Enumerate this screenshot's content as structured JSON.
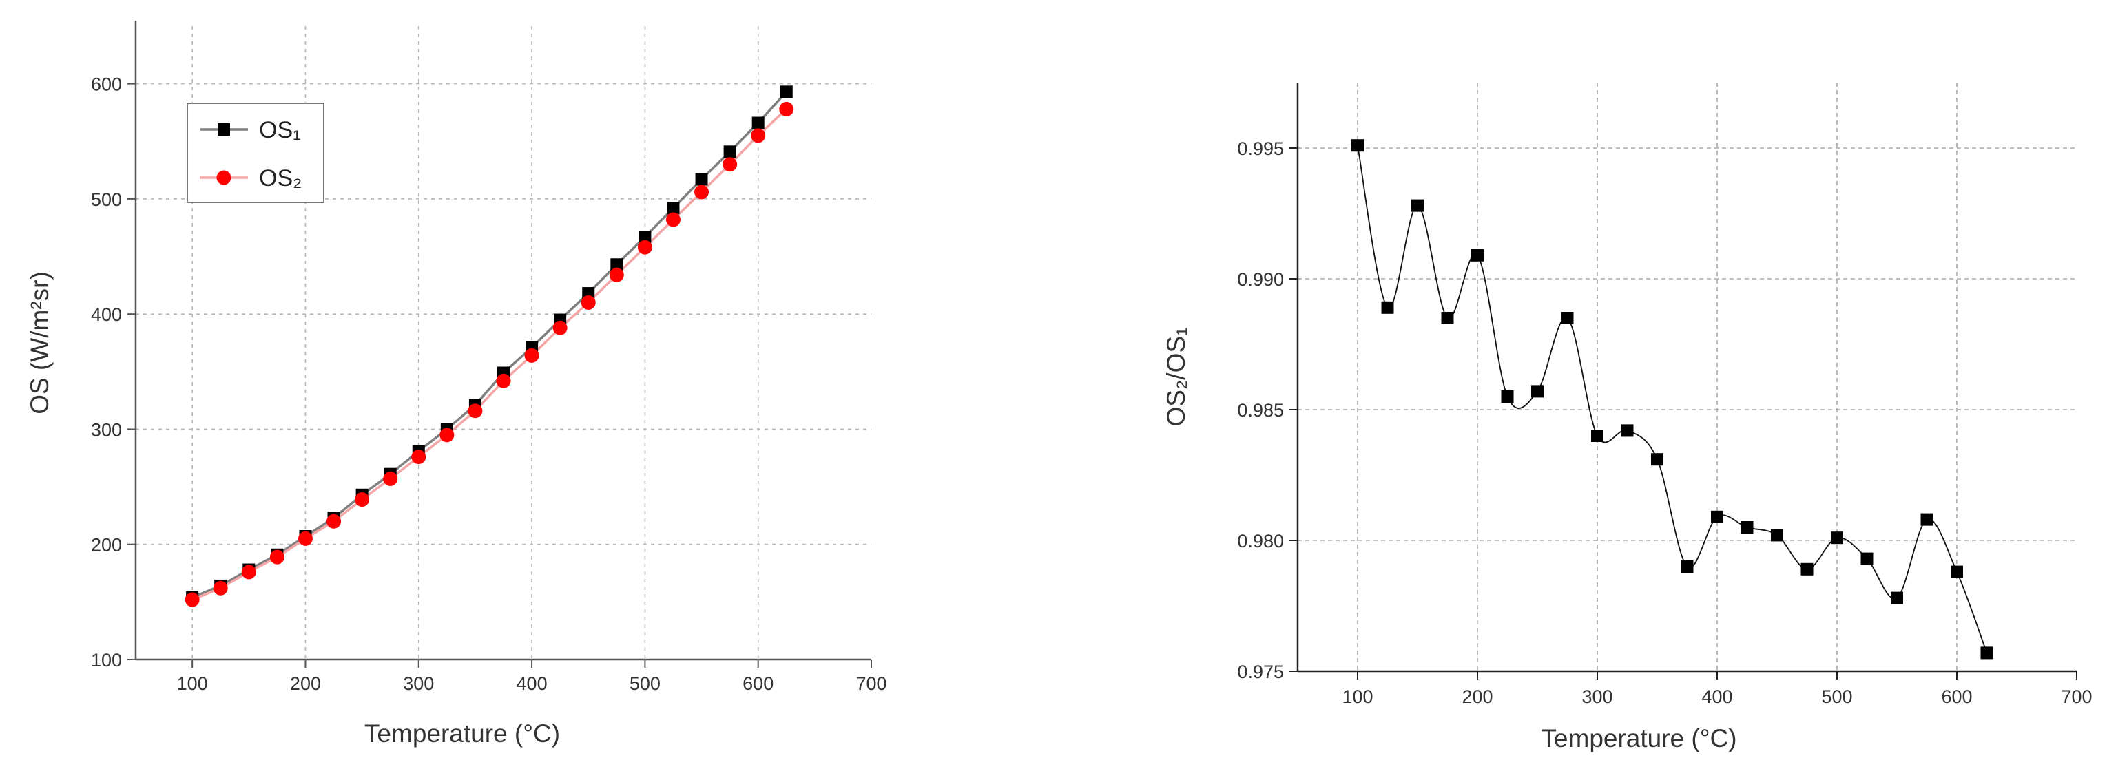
{
  "chart_data": [
    {
      "type": "line",
      "title": "",
      "xlabel": "Temperature (°C)",
      "ylabel": "OS (W/m²sr)",
      "xlim": [
        50,
        700
      ],
      "ylim": [
        100,
        650
      ],
      "xticks": [
        100,
        200,
        300,
        400,
        500,
        600,
        700
      ],
      "yticks": [
        100,
        200,
        300,
        400,
        500,
        600
      ],
      "grid": true,
      "legend": "top-left",
      "x": [
        100,
        125,
        150,
        175,
        200,
        225,
        250,
        275,
        300,
        325,
        350,
        375,
        400,
        425,
        450,
        475,
        500,
        525,
        550,
        575,
        600,
        625
      ],
      "series": [
        {
          "name": "OS₁",
          "color": "#000000",
          "line_color": "#7f7f7f",
          "marker": "square",
          "values": [
            154,
            164,
            178,
            191,
            207,
            223,
            243,
            261,
            281,
            300,
            321,
            349,
            371,
            395,
            418,
            443,
            467,
            492,
            517,
            541,
            566,
            593
          ]
        },
        {
          "name": "OS₂",
          "color": "#ff0000",
          "line_color": "#f4a6a6",
          "marker": "circle",
          "values": [
            152,
            162,
            176,
            189,
            205,
            220,
            239,
            257,
            276,
            295,
            316,
            342,
            364,
            388,
            410,
            434,
            458,
            482,
            506,
            530,
            555,
            578
          ]
        }
      ]
    },
    {
      "type": "scatter",
      "title": "",
      "xlabel": "Temperature (°C)",
      "ylabel": "OS₂/OS₁",
      "xlim": [
        50,
        700
      ],
      "ylim": [
        0.975,
        0.9975
      ],
      "xticks": [
        100,
        200,
        300,
        400,
        500,
        600,
        700
      ],
      "yticks": [
        0.975,
        0.98,
        0.985,
        0.99,
        0.995
      ],
      "ytick_labels": [
        "0.975",
        "0.980",
        "0.985",
        "0.990",
        "0.995"
      ],
      "grid": true,
      "series": [
        {
          "color": "#000000",
          "marker": "square",
          "smooth_line": true,
          "x": [
            100,
            125,
            150,
            175,
            200,
            225,
            250,
            275,
            300,
            325,
            350,
            375,
            400,
            425,
            450,
            475,
            500,
            525,
            550,
            575,
            600,
            625
          ],
          "values": [
            0.9951,
            0.9889,
            0.9928,
            0.9885,
            0.9909,
            0.9855,
            0.9857,
            0.9885,
            0.984,
            0.9842,
            0.9831,
            0.979,
            0.9809,
            0.9805,
            0.9802,
            0.9789,
            0.9801,
            0.9793,
            0.9778,
            0.9808,
            0.9788,
            0.9757
          ]
        }
      ]
    }
  ]
}
